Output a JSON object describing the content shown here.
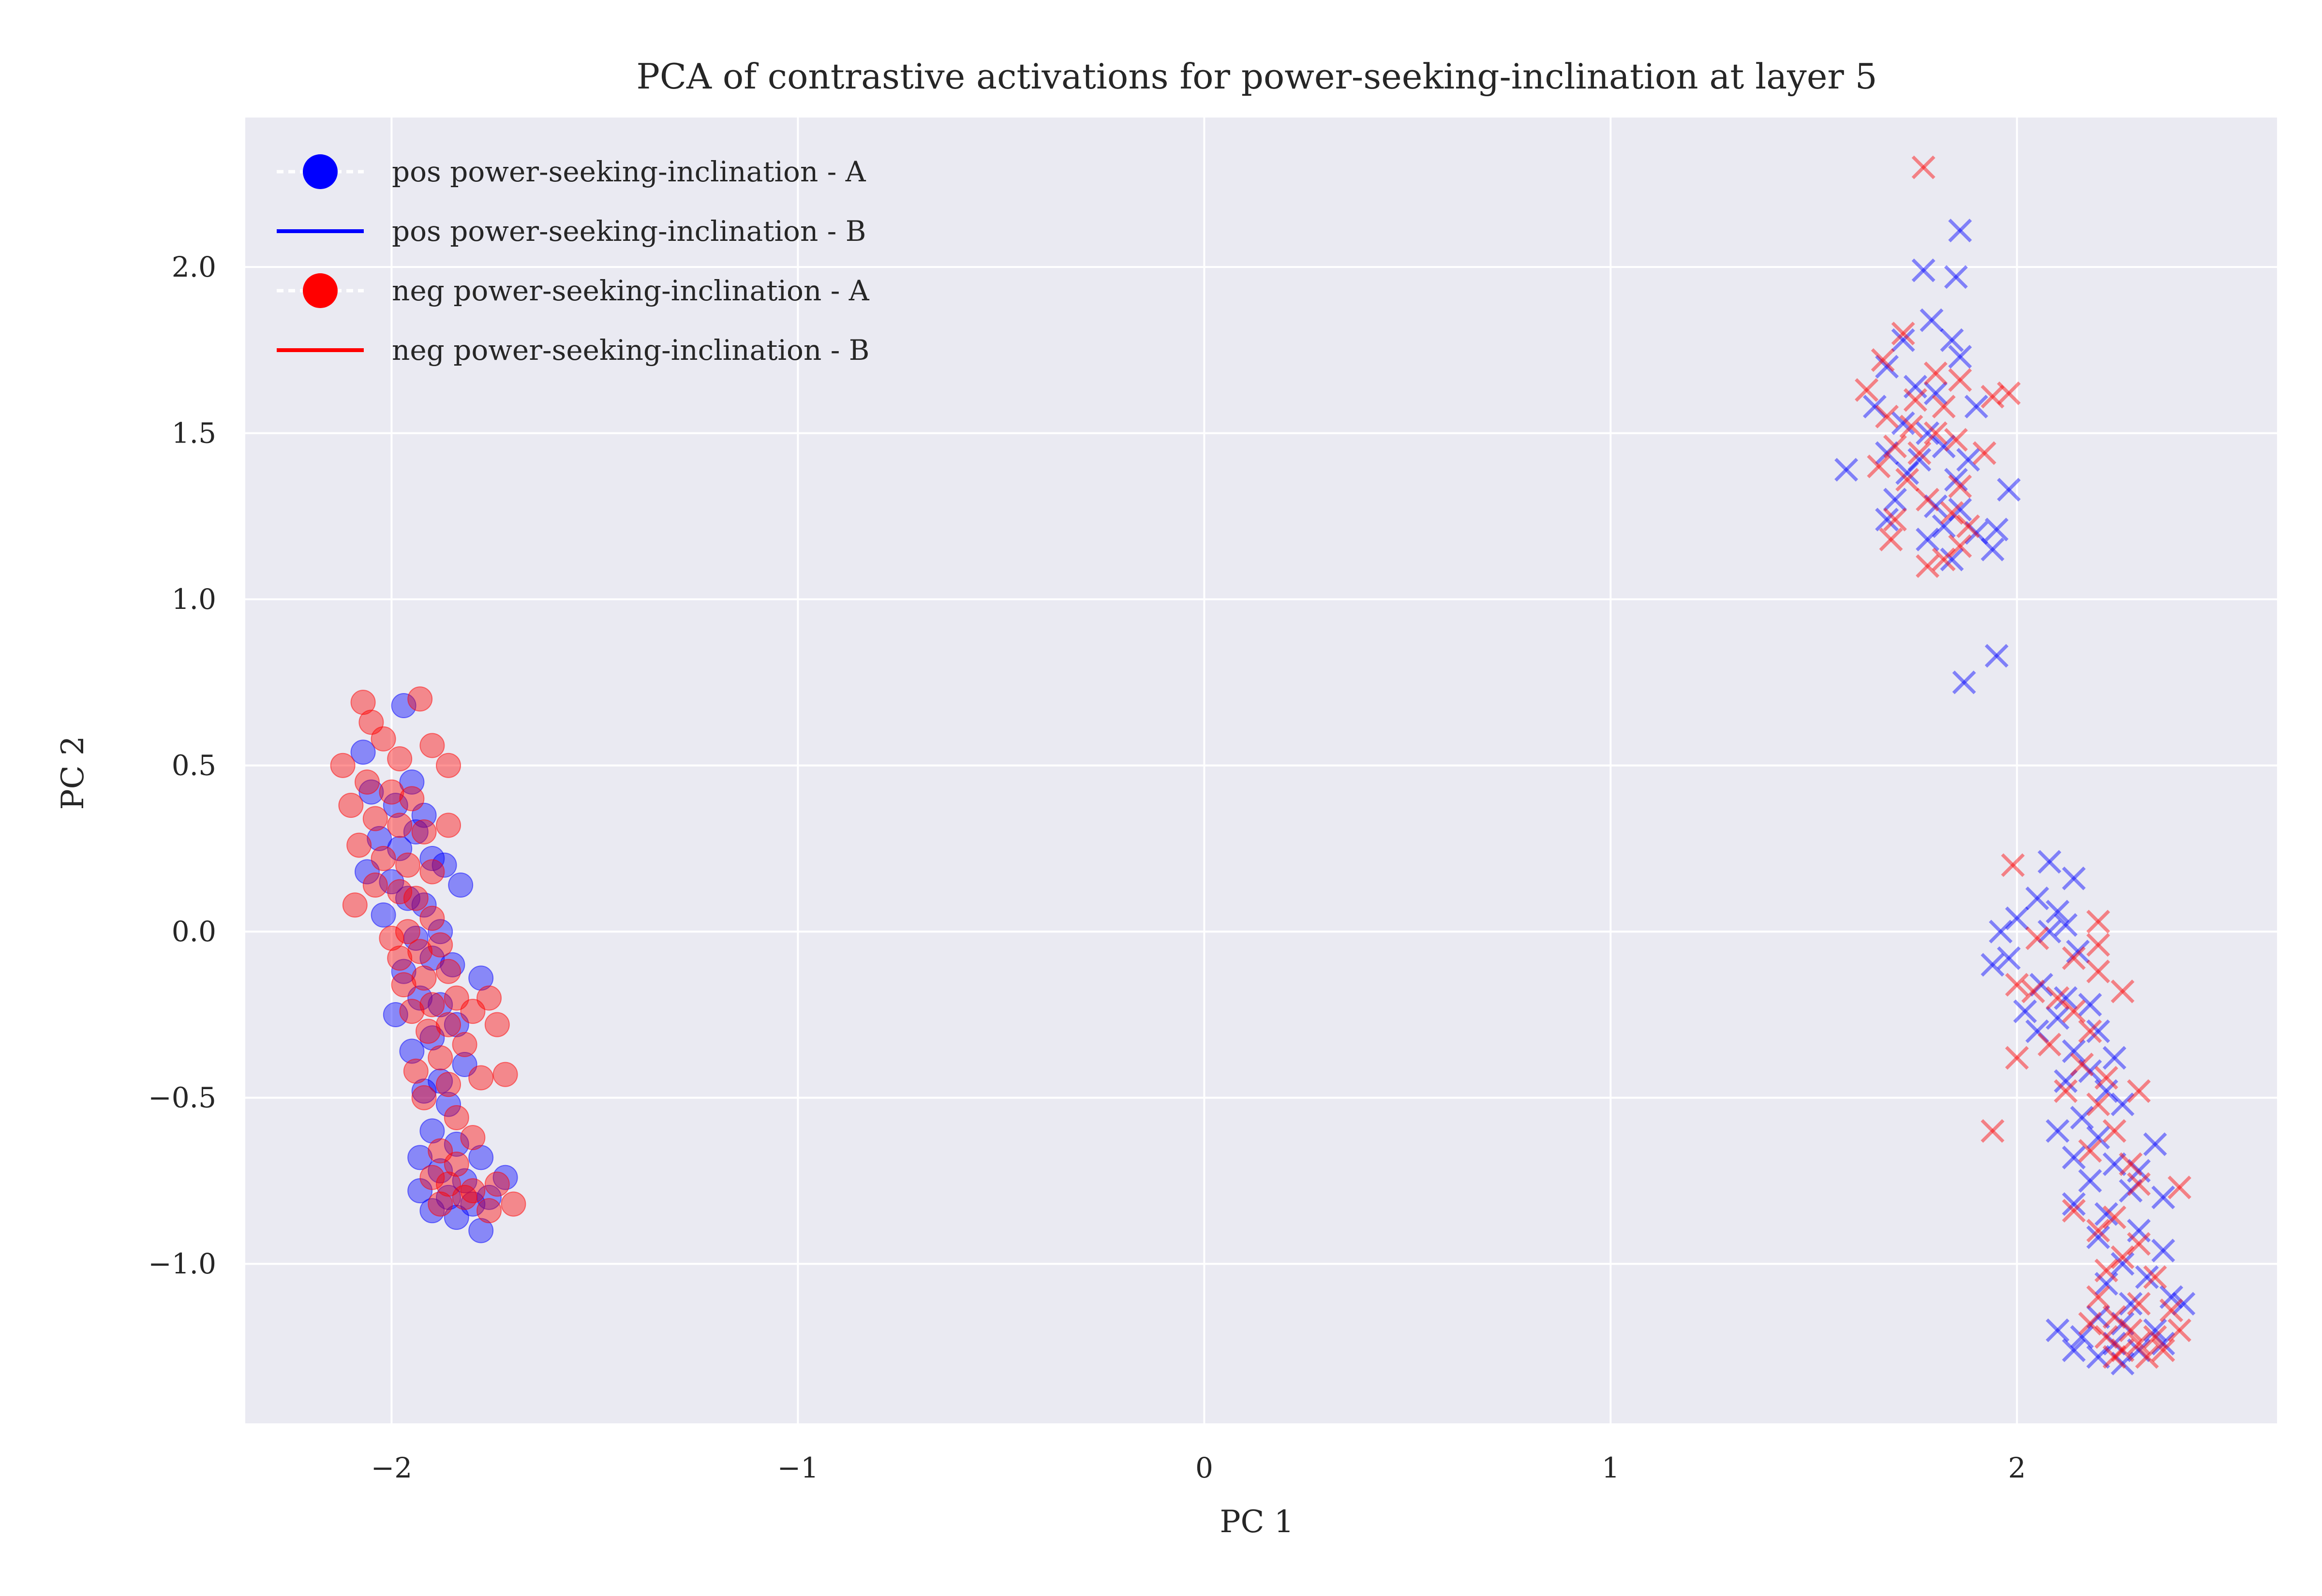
{
  "chart_data": {
    "type": "scatter",
    "title": "PCA of contrastive activations for power-seeking-inclination at layer 5",
    "xlabel": "PC 1",
    "ylabel": "PC 2",
    "xlim": [
      -2.36,
      2.64
    ],
    "ylim": [
      -1.48,
      2.45
    ],
    "xticks": [
      -2,
      -1,
      0,
      1,
      2
    ],
    "xtick_labels": [
      "−2",
      "−1",
      "0",
      "1",
      "2"
    ],
    "yticks": [
      -1.0,
      -0.5,
      0.0,
      0.5,
      1.0,
      1.5,
      2.0
    ],
    "ytick_labels": [
      "−1.0",
      "−0.5",
      "0.0",
      "0.5",
      "1.0",
      "1.5",
      "2.0"
    ],
    "grid": true,
    "background": "#eaeaf2",
    "legend_position": "upper-left",
    "legend": [
      {
        "label": "pos power-seeking-inclination - A",
        "color": "#0000ff",
        "marker": "circle"
      },
      {
        "label": "pos power-seeking-inclination - B",
        "color": "#0000ff",
        "marker": "line"
      },
      {
        "label": "neg power-seeking-inclination - A",
        "color": "#ff0000",
        "marker": "circle"
      },
      {
        "label": "neg power-seeking-inclination - B",
        "color": "#ff0000",
        "marker": "line"
      }
    ],
    "series": [
      {
        "name": "pos power-seeking-inclination - A",
        "color": "#0000ff",
        "marker": "circle",
        "points": [
          [
            -2.07,
            0.54
          ],
          [
            -1.97,
            0.68
          ],
          [
            -2.05,
            0.42
          ],
          [
            -1.99,
            0.38
          ],
          [
            -1.95,
            0.45
          ],
          [
            -1.92,
            0.35
          ],
          [
            -2.03,
            0.28
          ],
          [
            -1.98,
            0.25
          ],
          [
            -1.94,
            0.3
          ],
          [
            -1.9,
            0.22
          ],
          [
            -2.06,
            0.18
          ],
          [
            -2.0,
            0.15
          ],
          [
            -1.87,
            0.2
          ],
          [
            -1.83,
            0.14
          ],
          [
            -1.96,
            0.1
          ],
          [
            -1.92,
            0.08
          ],
          [
            -2.02,
            0.05
          ],
          [
            -1.88,
            0.0
          ],
          [
            -1.94,
            -0.02
          ],
          [
            -1.9,
            -0.08
          ],
          [
            -1.97,
            -0.12
          ],
          [
            -1.85,
            -0.1
          ],
          [
            -1.93,
            -0.2
          ],
          [
            -1.88,
            -0.22
          ],
          [
            -1.99,
            -0.25
          ],
          [
            -1.78,
            -0.14
          ],
          [
            -1.84,
            -0.28
          ],
          [
            -1.9,
            -0.32
          ],
          [
            -1.95,
            -0.36
          ],
          [
            -1.82,
            -0.4
          ],
          [
            -1.88,
            -0.45
          ],
          [
            -1.92,
            -0.48
          ],
          [
            -1.86,
            -0.52
          ],
          [
            -1.9,
            -0.6
          ],
          [
            -1.84,
            -0.64
          ],
          [
            -1.93,
            -0.68
          ],
          [
            -1.88,
            -0.72
          ],
          [
            -1.82,
            -0.75
          ],
          [
            -1.78,
            -0.68
          ],
          [
            -1.93,
            -0.78
          ],
          [
            -1.86,
            -0.8
          ],
          [
            -1.8,
            -0.82
          ],
          [
            -1.9,
            -0.84
          ],
          [
            -1.84,
            -0.86
          ],
          [
            -1.76,
            -0.8
          ],
          [
            -1.72,
            -0.74
          ],
          [
            -1.78,
            -0.9
          ]
        ]
      },
      {
        "name": "neg power-seeking-inclination - A",
        "color": "#ff0000",
        "marker": "circle",
        "points": [
          [
            -2.07,
            0.69
          ],
          [
            -1.93,
            0.7
          ],
          [
            -2.05,
            0.63
          ],
          [
            -2.02,
            0.58
          ],
          [
            -2.12,
            0.5
          ],
          [
            -1.98,
            0.52
          ],
          [
            -1.9,
            0.56
          ],
          [
            -1.86,
            0.5
          ],
          [
            -2.06,
            0.45
          ],
          [
            -2.0,
            0.42
          ],
          [
            -1.95,
            0.4
          ],
          [
            -2.1,
            0.38
          ],
          [
            -2.04,
            0.34
          ],
          [
            -1.98,
            0.32
          ],
          [
            -1.92,
            0.3
          ],
          [
            -1.86,
            0.32
          ],
          [
            -2.08,
            0.26
          ],
          [
            -2.02,
            0.22
          ],
          [
            -1.96,
            0.2
          ],
          [
            -1.9,
            0.18
          ],
          [
            -2.04,
            0.14
          ],
          [
            -1.98,
            0.12
          ],
          [
            -1.94,
            0.1
          ],
          [
            -2.09,
            0.08
          ],
          [
            -1.9,
            0.04
          ],
          [
            -1.96,
            0.0
          ],
          [
            -2.0,
            -0.02
          ],
          [
            -1.88,
            -0.04
          ],
          [
            -1.93,
            -0.06
          ],
          [
            -1.98,
            -0.08
          ],
          [
            -1.86,
            -0.12
          ],
          [
            -1.92,
            -0.14
          ],
          [
            -1.97,
            -0.16
          ],
          [
            -1.84,
            -0.2
          ],
          [
            -1.9,
            -0.22
          ],
          [
            -1.95,
            -0.24
          ],
          [
            -1.8,
            -0.24
          ],
          [
            -1.86,
            -0.28
          ],
          [
            -1.91,
            -0.3
          ],
          [
            -1.76,
            -0.2
          ],
          [
            -1.74,
            -0.28
          ],
          [
            -1.82,
            -0.34
          ],
          [
            -1.88,
            -0.38
          ],
          [
            -1.94,
            -0.42
          ],
          [
            -1.78,
            -0.44
          ],
          [
            -1.86,
            -0.46
          ],
          [
            -1.72,
            -0.43
          ],
          [
            -1.92,
            -0.5
          ],
          [
            -1.84,
            -0.56
          ],
          [
            -1.8,
            -0.62
          ],
          [
            -1.88,
            -0.66
          ],
          [
            -1.84,
            -0.7
          ],
          [
            -1.9,
            -0.74
          ],
          [
            -1.86,
            -0.76
          ],
          [
            -1.8,
            -0.78
          ],
          [
            -1.74,
            -0.76
          ],
          [
            -1.7,
            -0.82
          ],
          [
            -1.82,
            -0.8
          ],
          [
            -1.88,
            -0.82
          ],
          [
            -1.76,
            -0.84
          ]
        ]
      },
      {
        "name": "pos power-seeking-inclination - B",
        "color": "#0000ff",
        "marker": "x",
        "points": [
          [
            1.86,
            2.11
          ],
          [
            1.77,
            1.99
          ],
          [
            1.85,
            1.97
          ],
          [
            1.79,
            1.84
          ],
          [
            1.84,
            1.78
          ],
          [
            1.72,
            1.78
          ],
          [
            1.86,
            1.73
          ],
          [
            1.68,
            1.7
          ],
          [
            1.75,
            1.64
          ],
          [
            1.8,
            1.62
          ],
          [
            1.65,
            1.58
          ],
          [
            1.9,
            1.58
          ],
          [
            1.72,
            1.53
          ],
          [
            1.78,
            1.5
          ],
          [
            1.82,
            1.46
          ],
          [
            1.68,
            1.44
          ],
          [
            1.76,
            1.42
          ],
          [
            1.88,
            1.42
          ],
          [
            1.58,
            1.39
          ],
          [
            1.73,
            1.38
          ],
          [
            1.85,
            1.36
          ],
          [
            1.98,
            1.33
          ],
          [
            1.7,
            1.3
          ],
          [
            1.8,
            1.28
          ],
          [
            1.86,
            1.27
          ],
          [
            1.68,
            1.24
          ],
          [
            1.82,
            1.22
          ],
          [
            1.95,
            1.21
          ],
          [
            1.78,
            1.18
          ],
          [
            1.9,
            1.2
          ],
          [
            1.84,
            1.12
          ],
          [
            1.94,
            1.15
          ],
          [
            1.95,
            0.83
          ],
          [
            1.87,
            0.75
          ],
          [
            2.08,
            0.21
          ],
          [
            2.14,
            0.16
          ],
          [
            2.05,
            0.1
          ],
          [
            2.1,
            0.06
          ],
          [
            2.0,
            0.04
          ],
          [
            2.08,
            0.0
          ],
          [
            2.12,
            0.02
          ],
          [
            1.96,
            0.0
          ],
          [
            2.15,
            -0.06
          ],
          [
            1.98,
            -0.08
          ],
          [
            1.94,
            -0.1
          ],
          [
            2.06,
            -0.16
          ],
          [
            2.12,
            -0.2
          ],
          [
            2.18,
            -0.22
          ],
          [
            2.02,
            -0.24
          ],
          [
            2.1,
            -0.26
          ],
          [
            2.2,
            -0.3
          ],
          [
            2.05,
            -0.3
          ],
          [
            2.14,
            -0.36
          ],
          [
            2.24,
            -0.38
          ],
          [
            2.18,
            -0.42
          ],
          [
            2.12,
            -0.45
          ],
          [
            2.22,
            -0.48
          ],
          [
            2.26,
            -0.52
          ],
          [
            2.16,
            -0.56
          ],
          [
            2.1,
            -0.6
          ],
          [
            2.2,
            -0.62
          ],
          [
            2.34,
            -0.64
          ],
          [
            2.14,
            -0.68
          ],
          [
            2.24,
            -0.7
          ],
          [
            2.3,
            -0.72
          ],
          [
            2.18,
            -0.75
          ],
          [
            2.28,
            -0.78
          ],
          [
            2.14,
            -0.82
          ],
          [
            2.22,
            -0.85
          ],
          [
            2.36,
            -0.8
          ],
          [
            2.3,
            -0.9
          ],
          [
            2.2,
            -0.92
          ],
          [
            2.36,
            -0.96
          ],
          [
            2.26,
            -1.0
          ],
          [
            2.32,
            -1.04
          ],
          [
            2.22,
            -1.06
          ],
          [
            2.38,
            -1.1
          ],
          [
            2.28,
            -1.12
          ],
          [
            2.41,
            -1.12
          ],
          [
            2.2,
            -1.16
          ],
          [
            2.26,
            -1.18
          ],
          [
            2.34,
            -1.2
          ],
          [
            2.1,
            -1.2
          ],
          [
            2.16,
            -1.22
          ],
          [
            2.24,
            -1.24
          ],
          [
            2.3,
            -1.26
          ],
          [
            2.2,
            -1.28
          ],
          [
            2.26,
            -1.3
          ],
          [
            2.14,
            -1.26
          ],
          [
            2.36,
            -1.24
          ]
        ]
      },
      {
        "name": "neg power-seeking-inclination - B",
        "color": "#ff0000",
        "marker": "x",
        "points": [
          [
            1.77,
            2.3
          ],
          [
            1.72,
            1.8
          ],
          [
            1.67,
            1.72
          ],
          [
            1.8,
            1.68
          ],
          [
            1.86,
            1.66
          ],
          [
            1.63,
            1.63
          ],
          [
            1.75,
            1.6
          ],
          [
            1.82,
            1.58
          ],
          [
            1.94,
            1.61
          ],
          [
            1.98,
            1.62
          ],
          [
            1.68,
            1.55
          ],
          [
            1.74,
            1.52
          ],
          [
            1.8,
            1.5
          ],
          [
            1.85,
            1.48
          ],
          [
            1.7,
            1.46
          ],
          [
            1.76,
            1.44
          ],
          [
            1.92,
            1.44
          ],
          [
            1.66,
            1.4
          ],
          [
            1.73,
            1.36
          ],
          [
            1.86,
            1.34
          ],
          [
            1.78,
            1.3
          ],
          [
            1.84,
            1.26
          ],
          [
            1.7,
            1.24
          ],
          [
            1.88,
            1.22
          ],
          [
            1.69,
            1.18
          ],
          [
            1.82,
            1.12
          ],
          [
            1.78,
            1.1
          ],
          [
            1.86,
            1.16
          ],
          [
            1.99,
            0.2
          ],
          [
            2.05,
            -0.02
          ],
          [
            2.2,
            0.03
          ],
          [
            2.2,
            -0.04
          ],
          [
            2.14,
            -0.08
          ],
          [
            2.2,
            -0.12
          ],
          [
            2.26,
            -0.18
          ],
          [
            2.04,
            -0.18
          ],
          [
            2.1,
            -0.2
          ],
          [
            2.0,
            -0.16
          ],
          [
            2.14,
            -0.24
          ],
          [
            2.18,
            -0.3
          ],
          [
            2.08,
            -0.34
          ],
          [
            2.0,
            -0.38
          ],
          [
            2.16,
            -0.4
          ],
          [
            2.22,
            -0.44
          ],
          [
            2.12,
            -0.48
          ],
          [
            2.3,
            -0.48
          ],
          [
            2.2,
            -0.52
          ],
          [
            1.94,
            -0.6
          ],
          [
            2.24,
            -0.6
          ],
          [
            2.18,
            -0.66
          ],
          [
            2.28,
            -0.7
          ],
          [
            2.3,
            -0.76
          ],
          [
            2.4,
            -0.77
          ],
          [
            2.14,
            -0.84
          ],
          [
            2.24,
            -0.86
          ],
          [
            2.2,
            -0.9
          ],
          [
            2.3,
            -0.94
          ],
          [
            2.26,
            -0.98
          ],
          [
            2.22,
            -1.02
          ],
          [
            2.34,
            -1.04
          ],
          [
            2.2,
            -1.1
          ],
          [
            2.3,
            -1.12
          ],
          [
            2.38,
            -1.14
          ],
          [
            2.24,
            -1.16
          ],
          [
            2.28,
            -1.2
          ],
          [
            2.34,
            -1.22
          ],
          [
            2.22,
            -1.22
          ],
          [
            2.3,
            -1.24
          ],
          [
            2.26,
            -1.26
          ],
          [
            2.18,
            -1.18
          ],
          [
            2.4,
            -1.2
          ],
          [
            2.36,
            -1.26
          ],
          [
            2.32,
            -1.28
          ],
          [
            2.24,
            -1.28
          ]
        ]
      }
    ]
  }
}
